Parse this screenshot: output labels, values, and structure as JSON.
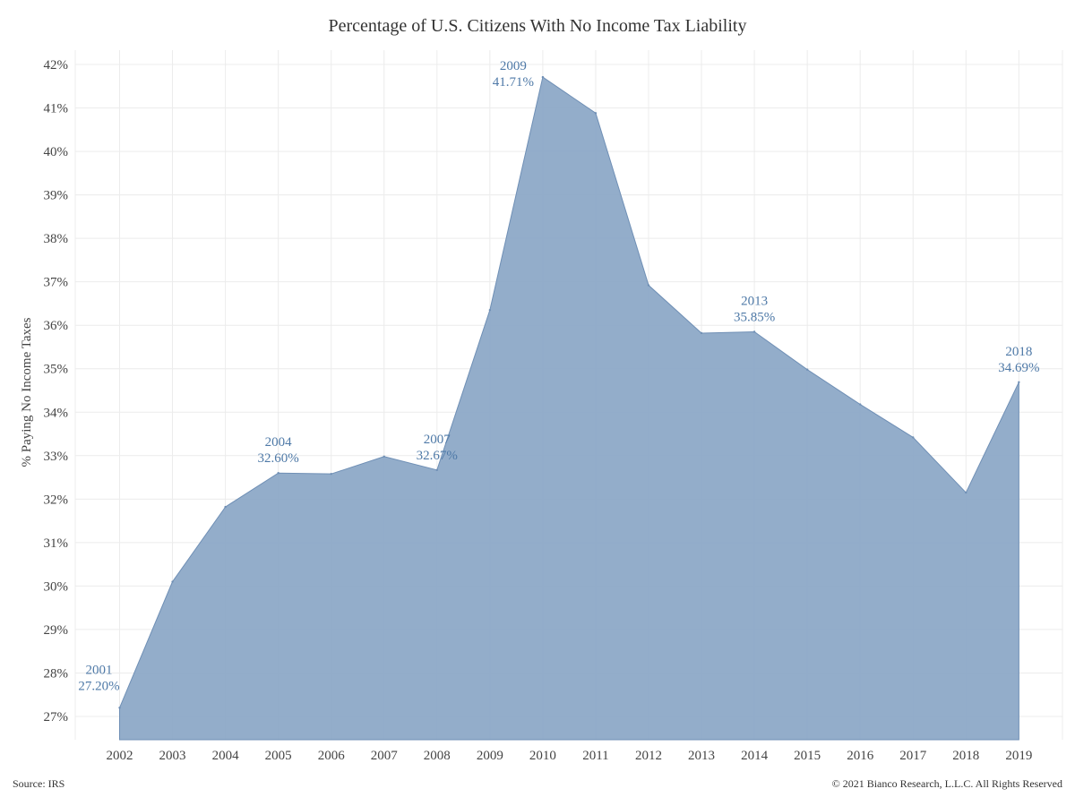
{
  "header": {
    "title": "Percentage of U.S. Citizens With No Income Tax Liability"
  },
  "footer": {
    "source": "Source: IRS",
    "copyright": "© 2021 Bianco Research, L.L.C. All Rights Reserved"
  },
  "chart_data": {
    "type": "area",
    "title": "Percentage of U.S. Citizens With No Income Tax Liability",
    "xlabel": "",
    "ylabel": "% Paying No Income Taxes",
    "x_ticks": [
      "2002",
      "2003",
      "2004",
      "2005",
      "2006",
      "2007",
      "2008",
      "2009",
      "2010",
      "2011",
      "2012",
      "2013",
      "2014",
      "2015",
      "2016",
      "2017",
      "2018",
      "2019"
    ],
    "y_ticks": [
      "27%",
      "28%",
      "29%",
      "30%",
      "31%",
      "32%",
      "33%",
      "34%",
      "35%",
      "36%",
      "37%",
      "38%",
      "39%",
      "40%",
      "41%",
      "42%"
    ],
    "ylim": [
      26.45,
      42.0
    ],
    "grid": true,
    "fill_color": "#8aa6c6",
    "line_color": "#6f8fb5",
    "annotation_color": "#4e79a7",
    "x": [
      "2002",
      "2003",
      "2004",
      "2005",
      "2006",
      "2007",
      "2008",
      "2009",
      "2010",
      "2011",
      "2012",
      "2013",
      "2014",
      "2015",
      "2016",
      "2017",
      "2018",
      "2019"
    ],
    "values": [
      27.2,
      30.1,
      31.82,
      32.6,
      32.58,
      32.98,
      32.67,
      36.35,
      41.71,
      40.88,
      36.92,
      35.82,
      35.85,
      34.98,
      34.18,
      33.42,
      32.15,
      34.69
    ],
    "annotations": [
      {
        "index": 0,
        "year": "2001",
        "value": "27.20%",
        "anchor": "end"
      },
      {
        "index": 3,
        "year": "2004",
        "value": "32.60%",
        "anchor": "middle"
      },
      {
        "index": 6,
        "year": "2007",
        "value": "32.67%",
        "anchor": "middle"
      },
      {
        "index": 8,
        "year": "2009",
        "value": "41.71%",
        "anchor": "end"
      },
      {
        "index": 12,
        "year": "2013",
        "value": "35.85%",
        "anchor": "middle"
      },
      {
        "index": 17,
        "year": "2018",
        "value": "34.69%",
        "anchor": "middle"
      }
    ]
  }
}
